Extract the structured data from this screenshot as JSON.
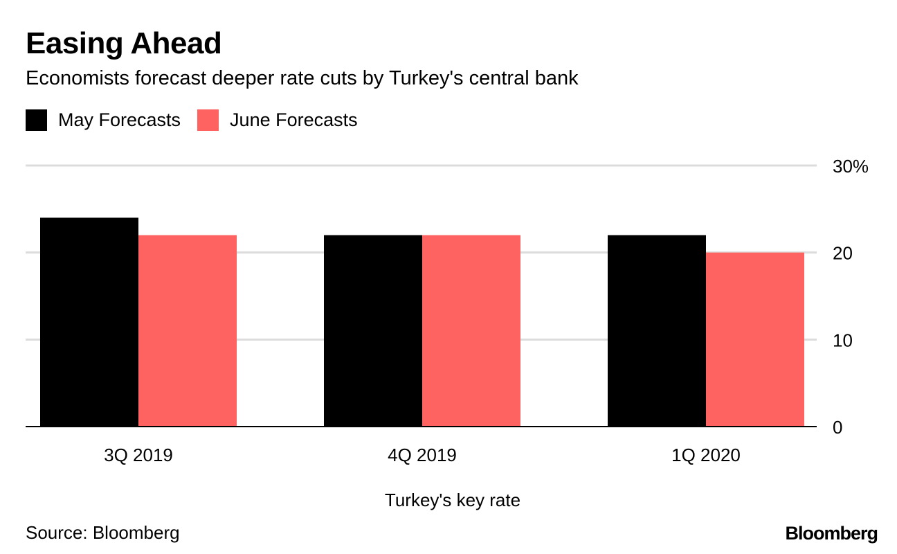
{
  "title": "Easing Ahead",
  "subtitle": "Economists forecast deeper rate cuts by Turkey's central bank",
  "source": "Source: Bloomberg",
  "logo": "Bloomberg",
  "chart_data": {
    "type": "bar",
    "categories": [
      "3Q 2019",
      "4Q 2019",
      "1Q 2020"
    ],
    "series": [
      {
        "name": "May Forecasts",
        "color": "#000000",
        "values": [
          24,
          22,
          22
        ]
      },
      {
        "name": "June Forecasts",
        "color": "#ff6361",
        "values": [
          22,
          22,
          20
        ]
      }
    ],
    "xlabel": "Turkey's key rate",
    "ylabel": "",
    "ylim": [
      0,
      30
    ],
    "yticks": [
      0,
      10,
      20,
      30
    ],
    "ytick_labels": [
      "0",
      "10",
      "20",
      "30%"
    ],
    "grid": true,
    "y_axis_side": "right",
    "legend_placement": "top-left"
  }
}
